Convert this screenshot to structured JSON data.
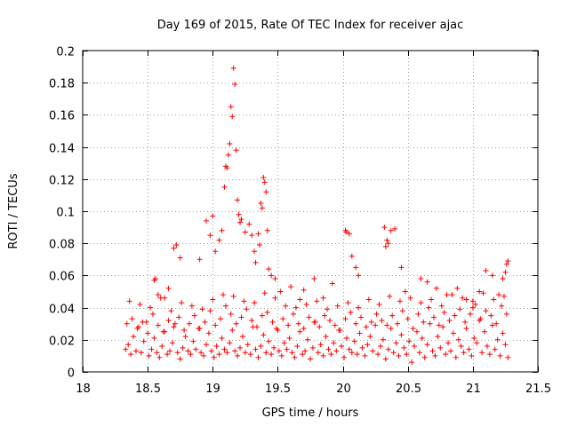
{
  "chart_data": {
    "type": "scatter",
    "title": "Day 169 of 2015, Rate Of TEC Index for receiver ajac",
    "xlabel": "GPS time / hours",
    "ylabel": "ROTI / TECUs",
    "xlim": [
      18,
      21.5
    ],
    "ylim": [
      0,
      0.2
    ],
    "xticks": [
      18,
      18.5,
      19,
      19.5,
      20,
      20.5,
      21,
      21.5
    ],
    "xtick_labels": [
      "18",
      "18.5",
      "19",
      "19.5",
      "20",
      "20.5",
      "21",
      "21.5"
    ],
    "yticks": [
      0,
      0.02,
      0.04,
      0.06,
      0.08,
      0.1,
      0.12,
      0.14,
      0.16,
      0.18,
      0.2
    ],
    "ytick_labels": [
      "0",
      "0.02",
      "0.04",
      "0.06",
      "0.08",
      "0.1",
      "0.12",
      "0.14",
      "0.16",
      "0.18",
      "0.2"
    ],
    "grid": true,
    "marker": "+",
    "color": "#ff0000",
    "series": [
      {
        "name": "ROTI",
        "x": [
          18.33,
          18.35,
          18.37,
          18.39,
          18.41,
          18.43,
          18.45,
          18.47,
          18.49,
          18.51,
          18.53,
          18.55,
          18.57,
          18.59,
          18.61,
          18.63,
          18.65,
          18.67,
          18.69,
          18.71,
          18.73,
          18.75,
          18.77,
          18.79,
          18.81,
          18.83,
          18.85,
          18.87,
          18.89,
          18.91,
          18.93,
          18.95,
          18.97,
          18.99,
          19.01,
          19.03,
          19.05,
          19.07,
          19.09,
          19.11,
          19.13,
          19.15,
          19.17,
          19.19,
          19.21,
          19.23,
          19.25,
          19.27,
          19.29,
          19.31,
          19.33,
          19.35,
          19.37,
          19.39,
          19.41,
          19.43,
          19.45,
          19.47,
          19.49,
          19.51,
          19.53,
          19.55,
          19.57,
          19.59,
          19.61,
          19.63,
          19.65,
          19.67,
          19.69,
          19.71,
          19.73,
          19.75,
          19.77,
          19.79,
          19.81,
          19.83,
          19.85,
          19.87,
          19.89,
          19.91,
          19.93,
          19.95,
          19.97,
          19.99,
          20.01,
          20.03,
          20.05,
          20.07,
          20.09,
          20.11,
          20.13,
          20.15,
          20.17,
          20.19,
          20.21,
          20.23,
          20.25,
          20.27,
          20.29,
          20.31,
          20.33,
          20.35,
          20.37,
          20.39,
          20.41,
          20.43,
          20.45,
          20.47,
          20.49,
          20.51,
          20.53,
          20.55,
          20.57,
          20.59,
          20.61,
          20.63,
          20.65,
          20.67,
          20.69,
          20.71,
          20.73,
          20.75,
          20.77,
          20.79,
          20.81,
          20.83,
          20.85,
          20.87,
          20.89,
          20.91,
          20.93,
          20.95,
          20.97,
          20.99,
          21.01,
          21.03,
          21.05,
          21.07,
          21.09,
          21.11,
          21.13,
          21.15,
          21.17,
          21.19,
          21.21,
          21.23,
          21.25,
          21.27,
          18.34,
          18.38,
          18.42,
          18.46,
          18.5,
          18.54,
          18.58,
          18.62,
          18.66,
          18.7,
          18.74,
          18.78,
          18.82,
          18.86,
          18.9,
          18.94,
          18.98,
          19.02,
          19.06,
          19.1,
          19.14,
          19.18,
          19.22,
          19.26,
          19.3,
          19.34,
          19.38,
          19.42,
          19.46,
          19.5,
          19.54,
          19.58,
          19.62,
          19.66,
          19.7,
          19.74,
          19.78,
          19.82,
          19.86,
          19.9,
          19.94,
          19.98,
          20.02,
          20.06,
          20.1,
          20.14,
          20.18,
          20.22,
          20.26,
          20.3,
          20.34,
          20.38,
          20.42,
          20.46,
          20.5,
          20.54,
          20.58,
          20.62,
          20.66,
          20.7,
          20.74,
          20.78,
          20.82,
          20.86,
          20.9,
          20.94,
          20.98,
          21.02,
          21.06,
          21.1,
          21.14,
          21.18,
          21.22,
          21.26,
          18.36,
          18.44,
          18.52,
          18.6,
          18.68,
          18.76,
          18.84,
          18.92,
          19.0,
          19.08,
          19.16,
          19.24,
          19.32,
          19.4,
          19.48,
          19.56,
          19.64,
          19.72,
          19.8,
          19.88,
          19.96,
          20.04,
          20.12,
          20.2,
          20.28,
          20.36,
          20.44,
          20.52,
          20.6,
          20.68,
          20.76,
          20.84,
          20.92,
          21.0,
          21.08,
          21.16,
          21.24,
          18.55,
          18.56,
          18.58,
          18.63,
          18.66,
          18.7,
          18.72,
          18.75,
          18.9,
          18.95,
          18.98,
          19.0,
          19.02,
          19.05,
          19.07,
          19.09,
          19.1,
          19.11,
          19.12,
          19.13,
          19.14,
          19.15,
          19.16,
          19.17,
          19.18,
          19.19,
          19.2,
          19.21,
          19.22,
          19.25,
          19.28,
          19.3,
          19.32,
          19.33,
          19.35,
          19.36,
          19.37,
          19.38,
          19.39,
          19.4,
          19.41,
          19.42,
          19.43,
          19.45,
          19.48,
          19.52,
          19.6,
          19.67,
          19.7,
          19.78,
          19.85,
          19.92,
          20.02,
          20.03,
          20.05,
          20.07,
          20.1,
          20.12,
          20.32,
          20.33,
          20.34,
          20.35,
          20.37,
          20.4,
          20.45,
          20.48,
          20.6,
          20.65,
          20.72,
          20.8,
          20.88,
          20.95,
          21.0,
          21.05,
          21.1,
          21.15,
          21.2,
          21.23,
          21.25,
          21.26,
          21.27
        ],
        "y": [
          0.014,
          0.017,
          0.011,
          0.022,
          0.013,
          0.028,
          0.012,
          0.019,
          0.031,
          0.01,
          0.014,
          0.021,
          0.012,
          0.009,
          0.016,
          0.025,
          0.011,
          0.013,
          0.018,
          0.03,
          0.012,
          0.008,
          0.015,
          0.022,
          0.013,
          0.011,
          0.019,
          0.014,
          0.027,
          0.012,
          0.01,
          0.017,
          0.024,
          0.013,
          0.009,
          0.016,
          0.011,
          0.021,
          0.014,
          0.012,
          0.018,
          0.026,
          0.013,
          0.01,
          0.015,
          0.022,
          0.012,
          0.017,
          0.011,
          0.028,
          0.014,
          0.009,
          0.016,
          0.023,
          0.012,
          0.019,
          0.011,
          0.015,
          0.027,
          0.013,
          0.01,
          0.018,
          0.014,
          0.021,
          0.012,
          0.009,
          0.016,
          0.025,
          0.011,
          0.013,
          0.02,
          0.008,
          0.015,
          0.031,
          0.012,
          0.017,
          0.01,
          0.022,
          0.014,
          0.011,
          0.018,
          0.013,
          0.026,
          0.016,
          0.009,
          0.021,
          0.014,
          0.012,
          0.019,
          0.011,
          0.024,
          0.015,
          0.01,
          0.017,
          0.022,
          0.013,
          0.029,
          0.011,
          0.016,
          0.02,
          0.008,
          0.014,
          0.027,
          0.012,
          0.018,
          0.01,
          0.023,
          0.015,
          0.011,
          0.019,
          0.006,
          0.016,
          0.025,
          0.012,
          0.021,
          0.009,
          0.017,
          0.03,
          0.013,
          0.01,
          0.022,
          0.015,
          0.028,
          0.011,
          0.018,
          0.013,
          0.024,
          0.009,
          0.02,
          0.016,
          0.012,
          0.027,
          0.014,
          0.01,
          0.021,
          0.018,
          0.032,
          0.012,
          0.025,
          0.016,
          0.011,
          0.029,
          0.014,
          0.02,
          0.01,
          0.024,
          0.017,
          0.009,
          0.03,
          0.033,
          0.027,
          0.031,
          0.024,
          0.036,
          0.029,
          0.025,
          0.032,
          0.028,
          0.034,
          0.026,
          0.03,
          0.035,
          0.027,
          0.031,
          0.038,
          0.029,
          0.033,
          0.041,
          0.036,
          0.03,
          0.034,
          0.039,
          0.032,
          0.028,
          0.035,
          0.037,
          0.031,
          0.026,
          0.033,
          0.029,
          0.036,
          0.03,
          0.027,
          0.034,
          0.031,
          0.028,
          0.035,
          0.032,
          0.029,
          0.026,
          0.033,
          0.037,
          0.03,
          0.034,
          0.028,
          0.031,
          0.036,
          0.032,
          0.029,
          0.035,
          0.03,
          0.038,
          0.033,
          0.027,
          0.036,
          0.031,
          0.04,
          0.034,
          0.029,
          0.037,
          0.032,
          0.035,
          0.039,
          0.031,
          0.036,
          0.042,
          0.033,
          0.038,
          0.035,
          0.03,
          0.041,
          0.036,
          0.044,
          0.042,
          0.04,
          0.046,
          0.038,
          0.043,
          0.041,
          0.039,
          0.045,
          0.048,
          0.047,
          0.044,
          0.043,
          0.049,
          0.046,
          0.041,
          0.04,
          0.042,
          0.044,
          0.039,
          0.041,
          0.043,
          0.04,
          0.045,
          0.042,
          0.047,
          0.044,
          0.046,
          0.043,
          0.045,
          0.041,
          0.048,
          0.046,
          0.044,
          0.049,
          0.045,
          0.047,
          0.057,
          0.058,
          0.048,
          0.046,
          0.052,
          0.077,
          0.079,
          0.071,
          0.07,
          0.094,
          0.085,
          0.097,
          0.075,
          0.082,
          0.088,
          0.115,
          0.128,
          0.127,
          0.135,
          0.142,
          0.165,
          0.159,
          0.189,
          0.179,
          0.138,
          0.107,
          0.098,
          0.093,
          0.095,
          0.087,
          0.092,
          0.085,
          0.075,
          0.068,
          0.086,
          0.079,
          0.105,
          0.102,
          0.121,
          0.118,
          0.112,
          0.088,
          0.064,
          0.06,
          0.058,
          0.05,
          0.053,
          0.045,
          0.051,
          0.058,
          0.046,
          0.055,
          0.088,
          0.087,
          0.086,
          0.072,
          0.065,
          0.06,
          0.09,
          0.078,
          0.082,
          0.08,
          0.088,
          0.089,
          0.065,
          0.05,
          0.058,
          0.056,
          0.052,
          0.048,
          0.052,
          0.045,
          0.04,
          0.05,
          0.063,
          0.06,
          0.048,
          0.058,
          0.062,
          0.067,
          0.069
        ]
      }
    ]
  }
}
